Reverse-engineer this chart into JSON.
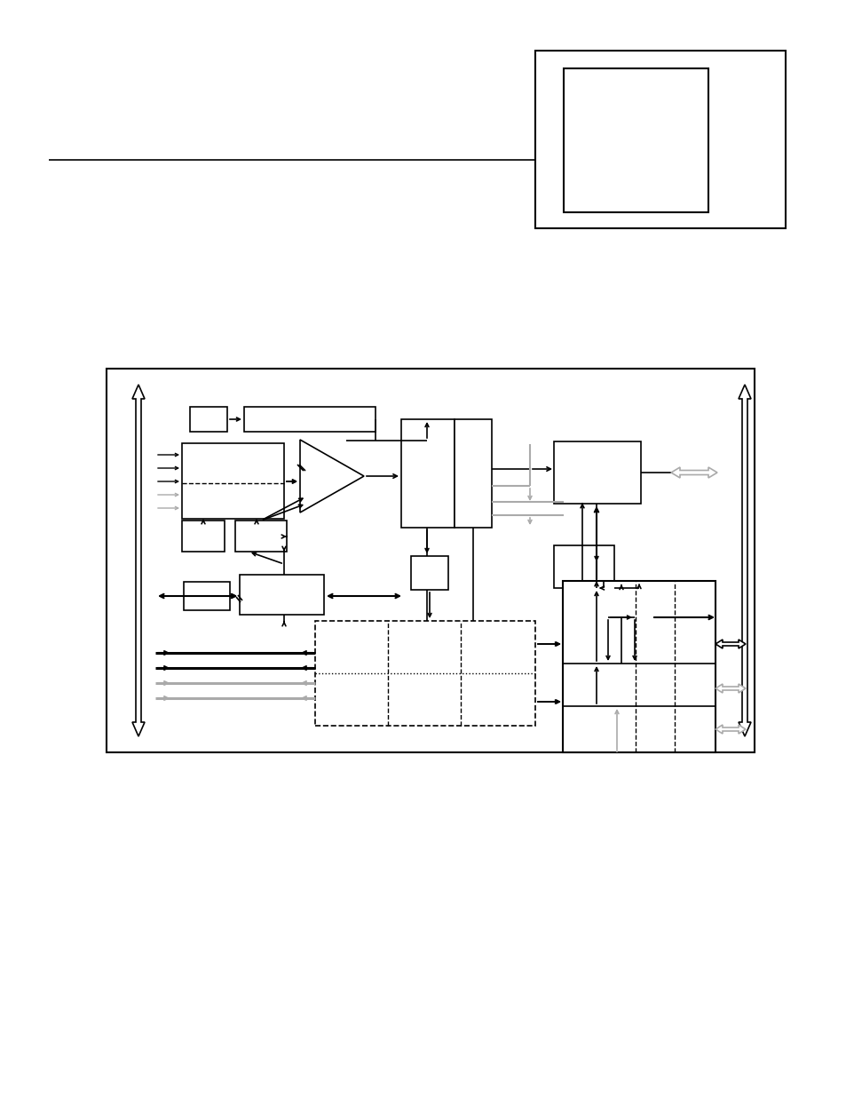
{
  "bg_color": "#ffffff",
  "fig_width": 9.54,
  "fig_height": 12.35,
  "gray": "#aaaaaa"
}
